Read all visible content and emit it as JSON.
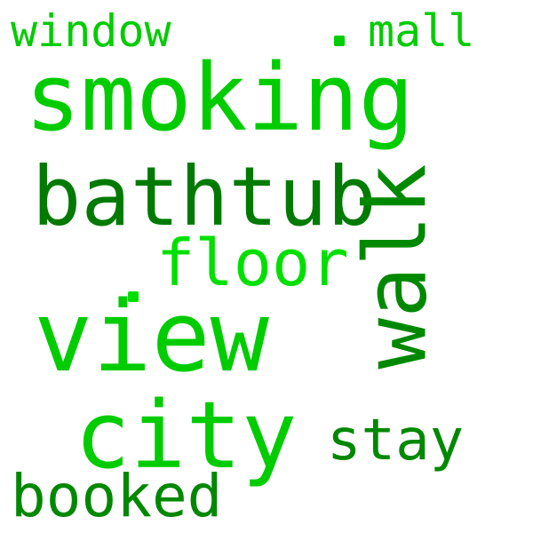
{
  "palette": {
    "bright": "#00cc00",
    "light": "#00e000",
    "dark": "#008800",
    "deep": "#007a00"
  },
  "words": {
    "smoking": "smoking",
    "window": "window",
    "mall": "mall",
    "bathtub": "bathtub",
    "walk": "walk",
    "floor": "floor",
    "view": "view",
    "city": "city",
    "stay": "stay",
    "booked": "booked"
  }
}
